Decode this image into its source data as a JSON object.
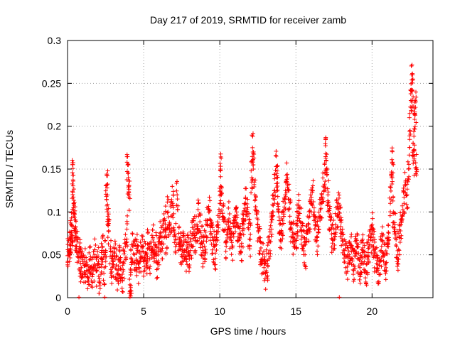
{
  "chart_data": {
    "type": "scatter",
    "title": "Day 217 of 2019, SRMTID for receiver zamb",
    "xlabel": "GPS time / hours",
    "ylabel": "SRMTID / TECUs",
    "xlim": [
      0,
      24
    ],
    "ylim": [
      0,
      0.3
    ],
    "xticks": [
      0,
      5,
      10,
      15,
      20
    ],
    "xtick_labels": [
      "0",
      "5",
      "10",
      "15",
      "20"
    ],
    "yticks": [
      0,
      0.05,
      0.1,
      0.15,
      0.2,
      0.25,
      0.3
    ],
    "ytick_labels": [
      "0",
      "0.05",
      "0.1",
      "0.15",
      "0.2",
      "0.25",
      "0.3"
    ],
    "grid": true,
    "marker": "+",
    "marker_color": "#ff0000",
    "series": [
      {
        "name": "SRMTID",
        "points": [
          [
            0.0,
            0.049
          ],
          [
            0.1,
            0.055
          ],
          [
            0.15,
            0.062
          ],
          [
            0.2,
            0.072
          ],
          [
            0.25,
            0.085
          ],
          [
            0.3,
            0.065
          ],
          [
            0.35,
            0.143
          ],
          [
            0.35,
            0.123
          ],
          [
            0.4,
            0.11
          ],
          [
            0.45,
            0.098
          ],
          [
            0.5,
            0.082
          ],
          [
            0.55,
            0.07
          ],
          [
            0.6,
            0.06
          ],
          [
            0.7,
            0.052
          ],
          [
            0.8,
            0.048
          ],
          [
            0.85,
            0.04
          ],
          [
            0.9,
            0.035
          ],
          [
            1.0,
            0.042
          ],
          [
            1.1,
            0.03
          ],
          [
            1.2,
            0.038
          ],
          [
            1.3,
            0.025
          ],
          [
            1.4,
            0.033
          ],
          [
            1.5,
            0.045
          ],
          [
            1.6,
            0.028
          ],
          [
            1.7,
            0.036
          ],
          [
            1.8,
            0.05
          ],
          [
            1.9,
            0.032
          ],
          [
            2.0,
            0.04
          ],
          [
            2.1,
            0.022
          ],
          [
            2.2,
            0.046
          ],
          [
            2.3,
            0.06
          ],
          [
            2.4,
            0.035
          ],
          [
            2.5,
            0.055
          ],
          [
            2.55,
            0.118
          ],
          [
            2.6,
            0.128
          ],
          [
            2.65,
            0.095
          ],
          [
            2.7,
            0.078
          ],
          [
            2.8,
            0.048
          ],
          [
            2.9,
            0.03
          ],
          [
            3.0,
            0.042
          ],
          [
            3.1,
            0.052
          ],
          [
            3.2,
            0.038
          ],
          [
            3.3,
            0.028
          ],
          [
            3.4,
            0.045
          ],
          [
            3.5,
            0.033
          ],
          [
            3.6,
            0.02
          ],
          [
            3.7,
            0.04
          ],
          [
            3.8,
            0.06
          ],
          [
            3.9,
            0.08
          ],
          [
            3.95,
            0.155
          ],
          [
            4.0,
            0.14
          ],
          [
            4.05,
            0.12
          ],
          [
            4.1,
            0.015
          ],
          [
            4.15,
            0.002
          ],
          [
            4.2,
            0.045
          ],
          [
            4.3,
            0.06
          ],
          [
            4.4,
            0.05
          ],
          [
            4.5,
            0.04
          ],
          [
            4.6,
            0.055
          ],
          [
            4.7,
            0.035
          ],
          [
            4.8,
            0.048
          ],
          [
            4.9,
            0.058
          ],
          [
            5.0,
            0.042
          ],
          [
            5.1,
            0.052
          ],
          [
            5.2,
            0.038
          ],
          [
            5.3,
            0.062
          ],
          [
            5.4,
            0.045
          ],
          [
            5.5,
            0.055
          ],
          [
            5.6,
            0.07
          ],
          [
            5.7,
            0.05
          ],
          [
            5.8,
            0.06
          ],
          [
            5.9,
            0.04
          ],
          [
            6.0,
            0.058
          ],
          [
            6.1,
            0.072
          ],
          [
            6.2,
            0.065
          ],
          [
            6.3,
            0.08
          ],
          [
            6.4,
            0.09
          ],
          [
            6.5,
            0.07
          ],
          [
            6.6,
            0.1
          ],
          [
            6.7,
            0.085
          ],
          [
            6.8,
            0.095
          ],
          [
            6.9,
            0.11
          ],
          [
            7.0,
            0.08
          ],
          [
            7.1,
            0.068
          ],
          [
            7.2,
            0.12
          ],
          [
            7.3,
            0.075
          ],
          [
            7.4,
            0.06
          ],
          [
            7.5,
            0.05
          ],
          [
            7.6,
            0.062
          ],
          [
            7.7,
            0.055
          ],
          [
            7.8,
            0.048
          ],
          [
            7.9,
            0.058
          ],
          [
            8.0,
            0.045
          ],
          [
            8.1,
            0.066
          ],
          [
            8.2,
            0.075
          ],
          [
            8.3,
            0.08
          ],
          [
            8.4,
            0.07
          ],
          [
            8.5,
            0.085
          ],
          [
            8.6,
            0.095
          ],
          [
            8.7,
            0.078
          ],
          [
            8.8,
            0.065
          ],
          [
            8.9,
            0.055
          ],
          [
            9.0,
            0.06
          ],
          [
            9.1,
            0.072
          ],
          [
            9.2,
            0.09
          ],
          [
            9.3,
            0.1
          ],
          [
            9.4,
            0.082
          ],
          [
            9.5,
            0.07
          ],
          [
            9.6,
            0.06
          ],
          [
            9.7,
            0.052
          ],
          [
            9.8,
            0.068
          ],
          [
            9.9,
            0.085
          ],
          [
            10.0,
            0.11
          ],
          [
            10.05,
            0.15
          ],
          [
            10.1,
            0.12
          ],
          [
            10.2,
            0.095
          ],
          [
            10.3,
            0.078
          ],
          [
            10.4,
            0.065
          ],
          [
            10.5,
            0.08
          ],
          [
            10.6,
            0.092
          ],
          [
            10.7,
            0.07
          ],
          [
            10.8,
            0.06
          ],
          [
            10.9,
            0.075
          ],
          [
            11.0,
            0.088
          ],
          [
            11.1,
            0.1
          ],
          [
            11.2,
            0.082
          ],
          [
            11.3,
            0.07
          ],
          [
            11.4,
            0.06
          ],
          [
            11.5,
            0.078
          ],
          [
            11.6,
            0.09
          ],
          [
            11.7,
            0.11
          ],
          [
            11.8,
            0.095
          ],
          [
            11.9,
            0.08
          ],
          [
            12.0,
            0.068
          ],
          [
            12.1,
            0.14
          ],
          [
            12.15,
            0.175
          ],
          [
            12.2,
            0.15
          ],
          [
            12.3,
            0.12
          ],
          [
            12.4,
            0.1
          ],
          [
            12.5,
            0.085
          ],
          [
            12.6,
            0.07
          ],
          [
            12.7,
            0.058
          ],
          [
            12.8,
            0.045
          ],
          [
            12.9,
            0.035
          ],
          [
            13.0,
            0.028
          ],
          [
            13.1,
            0.04
          ],
          [
            13.2,
            0.052
          ],
          [
            13.3,
            0.065
          ],
          [
            13.4,
            0.08
          ],
          [
            13.5,
            0.1
          ],
          [
            13.6,
            0.125
          ],
          [
            13.7,
            0.153
          ],
          [
            13.75,
            0.14
          ],
          [
            13.8,
            0.11
          ],
          [
            13.9,
            0.09
          ],
          [
            14.0,
            0.075
          ],
          [
            14.1,
            0.085
          ],
          [
            14.2,
            0.1
          ],
          [
            14.3,
            0.12
          ],
          [
            14.4,
            0.138
          ],
          [
            14.5,
            0.115
          ],
          [
            14.6,
            0.095
          ],
          [
            14.7,
            0.08
          ],
          [
            14.8,
            0.07
          ],
          [
            14.9,
            0.06
          ],
          [
            15.0,
            0.075
          ],
          [
            15.1,
            0.09
          ],
          [
            15.2,
            0.105
          ],
          [
            15.3,
            0.088
          ],
          [
            15.4,
            0.072
          ],
          [
            15.5,
            0.06
          ],
          [
            15.6,
            0.05
          ],
          [
            15.7,
            0.065
          ],
          [
            15.8,
            0.08
          ],
          [
            15.9,
            0.095
          ],
          [
            16.0,
            0.11
          ],
          [
            16.1,
            0.125
          ],
          [
            16.2,
            0.1
          ],
          [
            16.3,
            0.085
          ],
          [
            16.4,
            0.07
          ],
          [
            16.5,
            0.08
          ],
          [
            16.6,
            0.095
          ],
          [
            16.7,
            0.11
          ],
          [
            16.8,
            0.13
          ],
          [
            16.9,
            0.145
          ],
          [
            16.95,
            0.168
          ],
          [
            17.0,
            0.15
          ],
          [
            17.1,
            0.12
          ],
          [
            17.2,
            0.095
          ],
          [
            17.3,
            0.08
          ],
          [
            17.4,
            0.068
          ],
          [
            17.5,
            0.075
          ],
          [
            17.6,
            0.085
          ],
          [
            17.7,
            0.095
          ],
          [
            17.8,
            0.11
          ],
          [
            17.9,
            0.09
          ],
          [
            18.0,
            0.075
          ],
          [
            18.1,
            0.062
          ],
          [
            18.2,
            0.055
          ],
          [
            18.3,
            0.048
          ],
          [
            18.4,
            0.04
          ],
          [
            18.5,
            0.05
          ],
          [
            18.6,
            0.058
          ],
          [
            18.7,
            0.045
          ],
          [
            18.8,
            0.038
          ],
          [
            18.9,
            0.052
          ],
          [
            19.0,
            0.06
          ],
          [
            19.1,
            0.045
          ],
          [
            19.2,
            0.035
          ],
          [
            19.3,
            0.048
          ],
          [
            19.4,
            0.055
          ],
          [
            19.5,
            0.042
          ],
          [
            19.6,
            0.03
          ],
          [
            19.7,
            0.045
          ],
          [
            19.8,
            0.058
          ],
          [
            19.9,
            0.07
          ],
          [
            20.0,
            0.08
          ],
          [
            20.1,
            0.06
          ],
          [
            20.2,
            0.048
          ],
          [
            20.3,
            0.04
          ],
          [
            20.4,
            0.032
          ],
          [
            20.5,
            0.045
          ],
          [
            20.6,
            0.055
          ],
          [
            20.7,
            0.065
          ],
          [
            20.8,
            0.05
          ],
          [
            20.9,
            0.04
          ],
          [
            21.0,
            0.06
          ],
          [
            21.1,
            0.07
          ],
          [
            21.2,
            0.11
          ],
          [
            21.3,
            0.14
          ],
          [
            21.35,
            0.158
          ],
          [
            21.4,
            0.1
          ],
          [
            21.5,
            0.08
          ],
          [
            21.6,
            0.06
          ],
          [
            21.7,
            0.05
          ],
          [
            21.8,
            0.07
          ],
          [
            21.9,
            0.085
          ],
          [
            22.0,
            0.095
          ],
          [
            22.1,
            0.11
          ],
          [
            22.2,
            0.135
          ],
          [
            22.3,
            0.12
          ],
          [
            22.4,
            0.15
          ],
          [
            22.5,
            0.195
          ],
          [
            22.55,
            0.23
          ],
          [
            22.6,
            0.26
          ],
          [
            22.65,
            0.242
          ],
          [
            22.7,
            0.18
          ],
          [
            22.75,
            0.16
          ],
          [
            22.8,
            0.208
          ],
          [
            22.85,
            0.222
          ],
          [
            22.9,
            0.15
          ]
        ]
      }
    ],
    "zero_points_x": [
      0.75,
      2.45,
      4.1,
      17.85
    ]
  }
}
